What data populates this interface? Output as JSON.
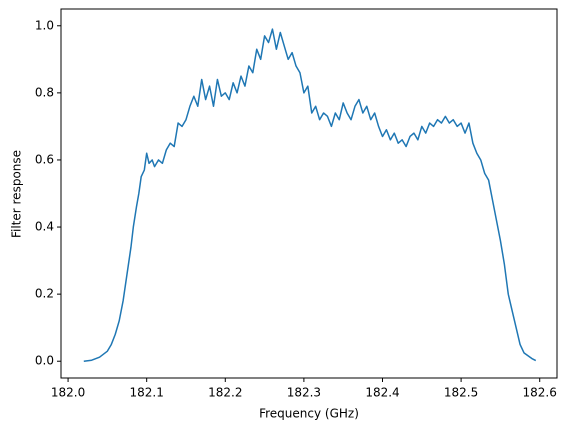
{
  "chart_data": {
    "type": "line",
    "x_label": "Frequency (GHz)",
    "y_label": "Filter response",
    "xlim": [
      181.991,
      182.622
    ],
    "ylim": [
      -0.05,
      1.05
    ],
    "xticks": [
      {
        "value": 182.0,
        "label": "182.0"
      },
      {
        "value": 182.1,
        "label": "182.1"
      },
      {
        "value": 182.2,
        "label": "182.2"
      },
      {
        "value": 182.3,
        "label": "182.3"
      },
      {
        "value": 182.4,
        "label": "182.4"
      },
      {
        "value": 182.5,
        "label": "182.5"
      },
      {
        "value": 182.6,
        "label": "182.6"
      }
    ],
    "yticks": [
      {
        "value": 0,
        "label": "0.0"
      },
      {
        "value": 0.2,
        "label": "0.2"
      },
      {
        "value": 0.4,
        "label": "0.4"
      },
      {
        "value": 0.6,
        "label": "0.6"
      },
      {
        "value": 0.8,
        "label": "0.8"
      },
      {
        "value": 1,
        "label": "1.0"
      }
    ],
    "grid": false,
    "x": [
      182.02,
      182.03,
      182.04,
      182.05,
      182.055,
      182.06,
      182.065,
      182.07,
      182.075,
      182.08,
      182.083,
      182.087,
      182.09,
      182.093,
      182.097,
      182.1,
      182.103,
      182.107,
      182.11,
      182.115,
      182.12,
      182.125,
      182.13,
      182.135,
      182.14,
      182.145,
      182.15,
      182.155,
      182.16,
      182.165,
      182.17,
      182.175,
      182.18,
      182.185,
      182.19,
      182.195,
      182.2,
      182.205,
      182.21,
      182.215,
      182.22,
      182.225,
      182.23,
      182.235,
      182.24,
      182.245,
      182.25,
      182.255,
      182.26,
      182.265,
      182.27,
      182.275,
      182.28,
      182.285,
      182.29,
      182.295,
      182.3,
      182.305,
      182.31,
      182.315,
      182.32,
      182.325,
      182.33,
      182.335,
      182.34,
      182.345,
      182.35,
      182.355,
      182.36,
      182.365,
      182.37,
      182.375,
      182.38,
      182.385,
      182.39,
      182.395,
      182.4,
      182.405,
      182.41,
      182.415,
      182.42,
      182.425,
      182.43,
      182.435,
      182.44,
      182.445,
      182.45,
      182.455,
      182.46,
      182.465,
      182.47,
      182.475,
      182.48,
      182.485,
      182.49,
      182.495,
      182.5,
      182.505,
      182.51,
      182.515,
      182.52,
      182.525,
      182.53,
      182.535,
      182.54,
      182.545,
      182.55,
      182.555,
      182.56,
      182.565,
      182.57,
      182.575,
      182.58,
      182.59,
      182.595
    ],
    "values": [
      0.0,
      0.003,
      0.012,
      0.03,
      0.05,
      0.08,
      0.12,
      0.18,
      0.26,
      0.34,
      0.4,
      0.46,
      0.5,
      0.55,
      0.57,
      0.62,
      0.59,
      0.6,
      0.58,
      0.6,
      0.59,
      0.63,
      0.65,
      0.64,
      0.71,
      0.7,
      0.72,
      0.76,
      0.79,
      0.76,
      0.84,
      0.78,
      0.82,
      0.76,
      0.84,
      0.79,
      0.8,
      0.78,
      0.83,
      0.8,
      0.85,
      0.82,
      0.88,
      0.86,
      0.93,
      0.9,
      0.97,
      0.95,
      0.99,
      0.93,
      0.98,
      0.94,
      0.9,
      0.92,
      0.88,
      0.86,
      0.8,
      0.82,
      0.74,
      0.76,
      0.72,
      0.74,
      0.73,
      0.7,
      0.74,
      0.72,
      0.77,
      0.74,
      0.72,
      0.76,
      0.78,
      0.74,
      0.76,
      0.72,
      0.74,
      0.7,
      0.67,
      0.69,
      0.66,
      0.68,
      0.65,
      0.66,
      0.64,
      0.67,
      0.68,
      0.66,
      0.7,
      0.68,
      0.71,
      0.7,
      0.72,
      0.71,
      0.73,
      0.71,
      0.72,
      0.7,
      0.71,
      0.68,
      0.71,
      0.65,
      0.62,
      0.6,
      0.56,
      0.54,
      0.48,
      0.42,
      0.36,
      0.29,
      0.2,
      0.15,
      0.1,
      0.05,
      0.025,
      0.008,
      0.002
    ],
    "color": "#1f77b4"
  }
}
